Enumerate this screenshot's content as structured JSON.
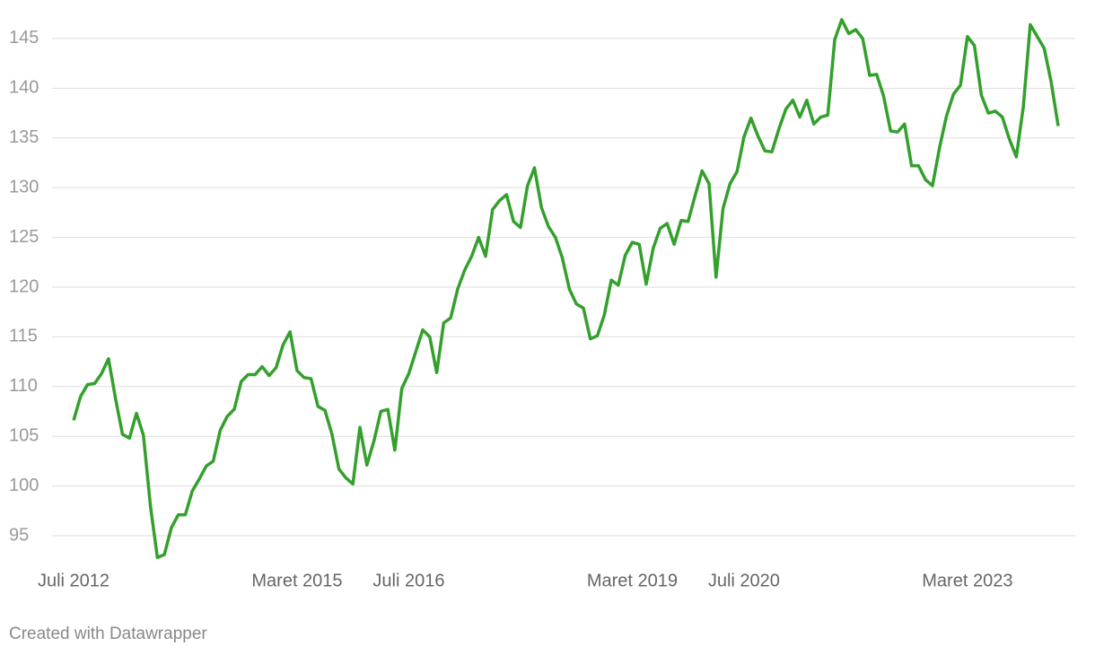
{
  "chart_data": {
    "type": "line",
    "categories": [
      "Juli 2012",
      null,
      null,
      null,
      null,
      null,
      null,
      null,
      null,
      null,
      null,
      null,
      null,
      null,
      null,
      null,
      null,
      null,
      null,
      null,
      null,
      null,
      null,
      null,
      null,
      null,
      null,
      null,
      null,
      null,
      null,
      null,
      "Maret 2015",
      null,
      null,
      null,
      null,
      null,
      null,
      null,
      null,
      null,
      null,
      null,
      null,
      null,
      null,
      null,
      "Juli 2016",
      null,
      null,
      null,
      null,
      null,
      null,
      null,
      null,
      null,
      null,
      null,
      null,
      null,
      null,
      null,
      null,
      null,
      null,
      null,
      null,
      null,
      null,
      null,
      null,
      null,
      null,
      null,
      null,
      null,
      null,
      null,
      "Maret 2019",
      null,
      null,
      null,
      null,
      null,
      null,
      null,
      null,
      null,
      null,
      null,
      null,
      null,
      null,
      null,
      "Juli 2020",
      null,
      null,
      null,
      null,
      null,
      null,
      null,
      null,
      null,
      null,
      null,
      null,
      null,
      null,
      null,
      null,
      null,
      null,
      null,
      null,
      null,
      null,
      null,
      null,
      null,
      null,
      null,
      null,
      null,
      null,
      null,
      "Maret 2023",
      null,
      null,
      null,
      null,
      null,
      null,
      null,
      null,
      null,
      null,
      null,
      null,
      null
    ],
    "series": [
      {
        "color": "#33a02c",
        "values": [
          106.6,
          109,
          110.2,
          110.3,
          111.3,
          112.8,
          108.8,
          105.2,
          104.8,
          107.3,
          105.1,
          98,
          92.8,
          93.1,
          95.8,
          97.1,
          97.1,
          99.5,
          100.7,
          102,
          102.5,
          105.6,
          107,
          107.7,
          110.5,
          111.2,
          111.2,
          112,
          111.1,
          111.9,
          114.2,
          115.5,
          111.6,
          110.9,
          110.8,
          108,
          107.6,
          105.2,
          101.7,
          100.8,
          100.2,
          105.9,
          102.1,
          104.5,
          107.5,
          107.7,
          103.6,
          109.8,
          111.3,
          113.5,
          115.7,
          115,
          111.4,
          116.4,
          116.9,
          119.8,
          121.7,
          123.1,
          125,
          123.1,
          127.8,
          128.7,
          129.3,
          126.6,
          126,
          130.2,
          132,
          128,
          126.1,
          125,
          122.9,
          119.8,
          118.3,
          117.9,
          114.8,
          115.1,
          117.2,
          120.7,
          120.2,
          123.2,
          124.5,
          124.3,
          120.3,
          123.9,
          125.9,
          126.4,
          124.3,
          126.7,
          126.6,
          129.2,
          131.7,
          130.4,
          121,
          127.9,
          130.4,
          131.6,
          135.1,
          137,
          135.2,
          133.7,
          133.6,
          135.9,
          137.9,
          138.8,
          137.1,
          138.8,
          136.4,
          137.1,
          137.3,
          144.9,
          146.9,
          145.5,
          145.9,
          145,
          141.3,
          141.4,
          139.2,
          135.7,
          135.6,
          136.4,
          132.2,
          132.2,
          130.8,
          130.2,
          134,
          137.2,
          139.4,
          140.3,
          145.2,
          144.3,
          139.3,
          137.5,
          137.7,
          137.1,
          134.9,
          133.1,
          138.1,
          146.4,
          145.2,
          144,
          140.6,
          136.2
        ]
      }
    ],
    "ylim": [
      92.5,
      147
    ],
    "yticks": [
      95,
      100,
      105,
      110,
      115,
      120,
      125,
      130,
      135,
      140,
      145
    ],
    "grid": true,
    "credit": "Created with Datawrapper"
  }
}
